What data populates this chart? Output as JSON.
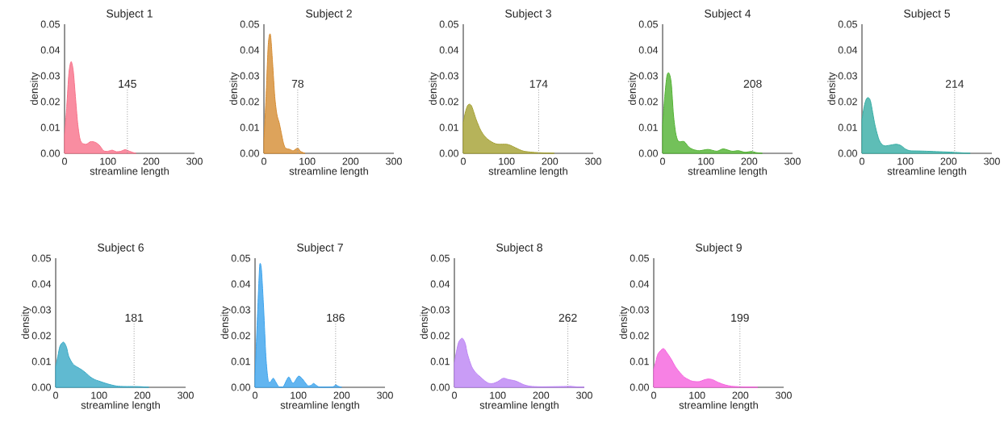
{
  "chart_data": [
    {
      "type": "area",
      "title": "Subject 1",
      "xlabel": "streamline length",
      "ylabel": "density",
      "color": "#f77189",
      "xlim": [
        0,
        300
      ],
      "xticks": [
        0,
        100,
        200,
        300
      ],
      "ylim": [
        0,
        0.05
      ],
      "yticks": [
        {
          "value": 0,
          "label": "0.00"
        },
        {
          "value": 0.01,
          "label": "0.01"
        },
        {
          "value": 0.02,
          "label": "0.02"
        },
        {
          "value": 0.03,
          "label": "0.03"
        },
        {
          "value": 0.04,
          "label": "0.04"
        },
        {
          "value": 0.05,
          "label": "0.05"
        }
      ],
      "grid": false,
      "x": [
        0,
        5,
        10,
        15,
        20,
        25,
        30,
        35,
        40,
        50,
        60,
        70,
        80,
        90,
        100,
        110,
        120,
        130,
        140,
        150,
        160,
        165
      ],
      "values": [
        0.007,
        0.018,
        0.031,
        0.0355,
        0.032,
        0.022,
        0.012,
        0.006,
        0.004,
        0.0035,
        0.0045,
        0.0043,
        0.0032,
        0.001,
        0.0008,
        0.0012,
        0.0006,
        0.0008,
        0.0014,
        0.0008,
        0.0002,
        0
      ],
      "ref_lines": [
        {
          "axis": "x",
          "value": 145,
          "label": "145",
          "color": "#999999",
          "line_style": "dotted"
        }
      ]
    },
    {
      "type": "area",
      "title": "Subject 2",
      "xlabel": "streamline length",
      "ylabel": "density",
      "color": "#d58c32",
      "xlim": [
        0,
        300
      ],
      "xticks": [
        0,
        100,
        200,
        300
      ],
      "ylim": [
        0,
        0.05
      ],
      "yticks": [
        {
          "value": 0,
          "label": "0.00"
        },
        {
          "value": 0.01,
          "label": "0.01"
        },
        {
          "value": 0.02,
          "label": "0.02"
        },
        {
          "value": 0.03,
          "label": "0.03"
        },
        {
          "value": 0.04,
          "label": "0.04"
        },
        {
          "value": 0.05,
          "label": "0.05"
        }
      ],
      "grid": false,
      "x": [
        0,
        5,
        10,
        15,
        20,
        25,
        30,
        35,
        40,
        45,
        50,
        60,
        68,
        78,
        85,
        95
      ],
      "values": [
        0.005,
        0.022,
        0.042,
        0.046,
        0.035,
        0.022,
        0.015,
        0.012,
        0.008,
        0.004,
        0.002,
        0.0015,
        0.001,
        0.002,
        0.0007,
        0
      ],
      "ref_lines": [
        {
          "axis": "x",
          "value": 78,
          "label": "78",
          "color": "#999999",
          "line_style": "dotted"
        }
      ]
    },
    {
      "type": "area",
      "title": "Subject 3",
      "xlabel": "streamline length",
      "ylabel": "density",
      "color": "#a4a031",
      "xlim": [
        0,
        300
      ],
      "xticks": [
        0,
        100,
        200,
        300
      ],
      "ylim": [
        0,
        0.05
      ],
      "yticks": [
        {
          "value": 0,
          "label": "0.00"
        },
        {
          "value": 0.01,
          "label": "0.01"
        },
        {
          "value": 0.02,
          "label": "0.02"
        },
        {
          "value": 0.03,
          "label": "0.03"
        },
        {
          "value": 0.04,
          "label": "0.04"
        },
        {
          "value": 0.05,
          "label": "0.05"
        }
      ],
      "grid": false,
      "x": [
        0,
        5,
        10,
        15,
        20,
        30,
        40,
        50,
        60,
        70,
        80,
        100,
        110,
        120,
        130,
        140,
        160,
        180,
        210
      ],
      "values": [
        0.012,
        0.016,
        0.0185,
        0.019,
        0.018,
        0.013,
        0.009,
        0.0065,
        0.005,
        0.004,
        0.0035,
        0.0035,
        0.003,
        0.0022,
        0.0014,
        0.0008,
        0.0004,
        0.0002,
        0
      ],
      "ref_lines": [
        {
          "axis": "x",
          "value": 174,
          "label": "174",
          "color": "#999999",
          "line_style": "dotted"
        }
      ]
    },
    {
      "type": "area",
      "title": "Subject 4",
      "xlabel": "streamline length",
      "ylabel": "density",
      "color": "#50b131",
      "xlim": [
        0,
        300
      ],
      "xticks": [
        0,
        100,
        200,
        300
      ],
      "ylim": [
        0,
        0.05
      ],
      "yticks": [
        {
          "value": 0,
          "label": "0.00"
        },
        {
          "value": 0.01,
          "label": "0.01"
        },
        {
          "value": 0.02,
          "label": "0.02"
        },
        {
          "value": 0.03,
          "label": "0.03"
        },
        {
          "value": 0.04,
          "label": "0.04"
        },
        {
          "value": 0.05,
          "label": "0.05"
        }
      ],
      "grid": false,
      "x": [
        0,
        5,
        10,
        15,
        20,
        25,
        30,
        35,
        40,
        50,
        60,
        70,
        85,
        105,
        125,
        140,
        160,
        175,
        190,
        205,
        215,
        230
      ],
      "values": [
        0.011,
        0.022,
        0.03,
        0.031,
        0.027,
        0.015,
        0.008,
        0.005,
        0.0045,
        0.0045,
        0.0025,
        0.0015,
        0.001,
        0.0015,
        0.0008,
        0.0017,
        0.0008,
        0.001,
        0.0004,
        0.0007,
        0.0003,
        0
      ],
      "ref_lines": [
        {
          "axis": "x",
          "value": 208,
          "label": "208",
          "color": "#999999",
          "line_style": "dotted"
        }
      ]
    },
    {
      "type": "area",
      "title": "Subject 5",
      "xlabel": "streamline length",
      "ylabel": "density",
      "color": "#36ada4",
      "xlim": [
        0,
        300
      ],
      "xticks": [
        0,
        100,
        200,
        300
      ],
      "ylim": [
        0,
        0.05
      ],
      "yticks": [
        {
          "value": 0,
          "label": "0.00"
        },
        {
          "value": 0.01,
          "label": "0.01"
        },
        {
          "value": 0.02,
          "label": "0.02"
        },
        {
          "value": 0.03,
          "label": "0.03"
        },
        {
          "value": 0.04,
          "label": "0.04"
        },
        {
          "value": 0.05,
          "label": "0.05"
        }
      ],
      "grid": false,
      "x": [
        0,
        5,
        10,
        15,
        20,
        30,
        40,
        50,
        60,
        70,
        80,
        90,
        100,
        110,
        130,
        150,
        180,
        210,
        230,
        250
      ],
      "values": [
        0.013,
        0.018,
        0.021,
        0.0215,
        0.02,
        0.011,
        0.005,
        0.003,
        0.003,
        0.0033,
        0.0035,
        0.003,
        0.0017,
        0.001,
        0.0009,
        0.0008,
        0.0006,
        0.0004,
        0.0002,
        0
      ],
      "ref_lines": [
        {
          "axis": "x",
          "value": 214,
          "label": "214",
          "color": "#999999",
          "line_style": "dotted"
        }
      ]
    },
    {
      "type": "area",
      "title": "Subject 6",
      "xlabel": "streamline length",
      "ylabel": "density",
      "color": "#38a9c5",
      "xlim": [
        0,
        300
      ],
      "xticks": [
        0,
        100,
        200,
        300
      ],
      "ylim": [
        0,
        0.05
      ],
      "yticks": [
        {
          "value": 0,
          "label": "0.00"
        },
        {
          "value": 0.01,
          "label": "0.01"
        },
        {
          "value": 0.02,
          "label": "0.02"
        },
        {
          "value": 0.03,
          "label": "0.03"
        },
        {
          "value": 0.04,
          "label": "0.04"
        },
        {
          "value": 0.05,
          "label": "0.05"
        }
      ],
      "grid": false,
      "x": [
        0,
        5,
        10,
        18,
        25,
        30,
        40,
        50,
        60,
        70,
        80,
        90,
        100,
        120,
        140,
        160,
        180,
        200,
        215
      ],
      "values": [
        0.008,
        0.012,
        0.016,
        0.0175,
        0.0155,
        0.012,
        0.009,
        0.0078,
        0.0068,
        0.0055,
        0.004,
        0.003,
        0.0024,
        0.0013,
        0.0005,
        0.0003,
        0.0003,
        0.0002,
        0
      ],
      "ref_lines": [
        {
          "axis": "x",
          "value": 181,
          "label": "181",
          "color": "#999999",
          "line_style": "dotted"
        }
      ]
    },
    {
      "type": "area",
      "title": "Subject 7",
      "xlabel": "streamline length",
      "ylabel": "density",
      "color": "#3ba3ec",
      "xlim": [
        0,
        300
      ],
      "xticks": [
        0,
        100,
        200,
        300
      ],
      "ylim": [
        0,
        0.05
      ],
      "yticks": [
        {
          "value": 0,
          "label": "0.00"
        },
        {
          "value": 0.01,
          "label": "0.01"
        },
        {
          "value": 0.02,
          "label": "0.02"
        },
        {
          "value": 0.03,
          "label": "0.03"
        },
        {
          "value": 0.04,
          "label": "0.04"
        },
        {
          "value": 0.05,
          "label": "0.05"
        }
      ],
      "grid": false,
      "x": [
        0,
        5,
        10,
        12,
        15,
        20,
        25,
        30,
        35,
        42,
        48,
        55,
        65,
        72,
        78,
        85,
        90,
        100,
        108,
        115,
        122,
        130,
        135,
        142,
        150,
        180,
        186,
        192,
        200
      ],
      "values": [
        0.004,
        0.025,
        0.045,
        0.048,
        0.045,
        0.03,
        0.012,
        0.003,
        0.002,
        0.0035,
        0.002,
        0.0002,
        0.0002,
        0.0025,
        0.004,
        0.002,
        0.0018,
        0.0043,
        0.0035,
        0.002,
        0.0006,
        0.0008,
        0.0015,
        0.0007,
        0.0001,
        0.0002,
        0.001,
        0.0004,
        0
      ],
      "ref_lines": [
        {
          "axis": "x",
          "value": 186,
          "label": "186",
          "color": "#999999",
          "line_style": "dotted"
        }
      ]
    },
    {
      "type": "area",
      "title": "Subject 8",
      "xlabel": "streamline length",
      "ylabel": "density",
      "color": "#bb83f4",
      "xlim": [
        0,
        300
      ],
      "xticks": [
        0,
        100,
        200,
        300
      ],
      "ylim": [
        0,
        0.05
      ],
      "yticks": [
        {
          "value": 0,
          "label": "0.00"
        },
        {
          "value": 0.01,
          "label": "0.01"
        },
        {
          "value": 0.02,
          "label": "0.02"
        },
        {
          "value": 0.03,
          "label": "0.03"
        },
        {
          "value": 0.04,
          "label": "0.04"
        },
        {
          "value": 0.05,
          "label": "0.05"
        }
      ],
      "grid": false,
      "x": [
        0,
        5,
        10,
        18,
        25,
        30,
        40,
        50,
        60,
        70,
        80,
        90,
        100,
        110,
        115,
        125,
        140,
        150,
        160,
        175,
        200,
        250,
        265,
        280,
        300
      ],
      "values": [
        0.0095,
        0.014,
        0.0175,
        0.019,
        0.017,
        0.013,
        0.008,
        0.0055,
        0.004,
        0.0025,
        0.0015,
        0.0015,
        0.0022,
        0.0033,
        0.0035,
        0.003,
        0.0025,
        0.0018,
        0.001,
        0.0004,
        0.0002,
        0.0003,
        0.0004,
        0.0002,
        0
      ],
      "ref_lines": [
        {
          "axis": "x",
          "value": 262,
          "label": "262",
          "color": "#999999",
          "line_style": "dotted"
        }
      ]
    },
    {
      "type": "area",
      "title": "Subject 9",
      "xlabel": "streamline length",
      "ylabel": "density",
      "color": "#f561dd",
      "xlim": [
        0,
        300
      ],
      "xticks": [
        0,
        100,
        200,
        300
      ],
      "ylim": [
        0,
        0.05
      ],
      "yticks": [
        {
          "value": 0,
          "label": "0.00"
        },
        {
          "value": 0.01,
          "label": "0.01"
        },
        {
          "value": 0.02,
          "label": "0.02"
        },
        {
          "value": 0.03,
          "label": "0.03"
        },
        {
          "value": 0.04,
          "label": "0.04"
        },
        {
          "value": 0.05,
          "label": "0.05"
        }
      ],
      "grid": false,
      "x": [
        0,
        5,
        10,
        22,
        30,
        40,
        50,
        60,
        70,
        80,
        90,
        105,
        115,
        125,
        135,
        150,
        165,
        180,
        200,
        220,
        240
      ],
      "values": [
        0.007,
        0.01,
        0.013,
        0.015,
        0.0135,
        0.011,
        0.008,
        0.0058,
        0.004,
        0.003,
        0.0023,
        0.0022,
        0.0028,
        0.0032,
        0.003,
        0.0018,
        0.0009,
        0.0004,
        0.0002,
        0.0001,
        0
      ],
      "ref_lines": [
        {
          "axis": "x",
          "value": 199,
          "label": "199",
          "color": "#999999",
          "line_style": "dotted"
        }
      ]
    }
  ]
}
